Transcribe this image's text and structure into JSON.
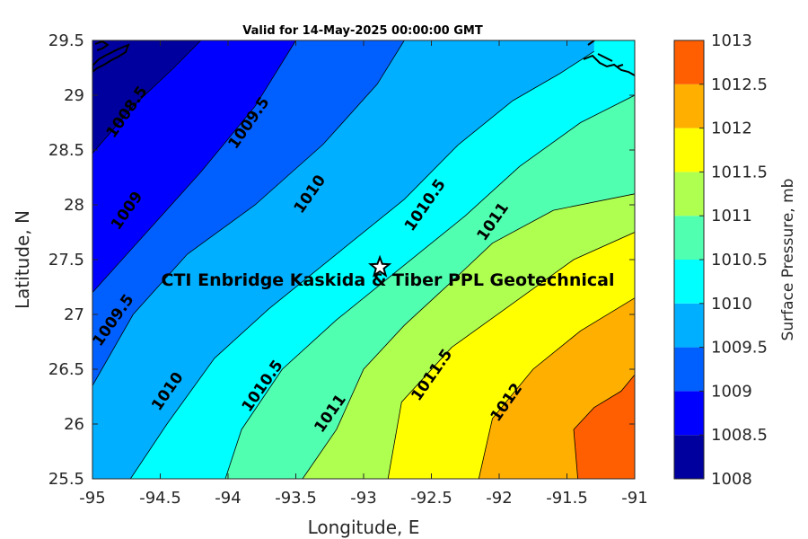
{
  "title": "Valid for 14-May-2025 00:00:00 GMT",
  "site_label": "CTI Enbridge  Kaskida & Tiber PPL Geotechnical",
  "site_marker": {
    "icon": "star-icon",
    "lon": -92.88,
    "lat": 27.43
  },
  "x_axis": {
    "label": "Longitude, E",
    "range": [
      -95,
      -91
    ],
    "ticks": [
      -95,
      -94.5,
      -94,
      -93.5,
      -93,
      -92.5,
      -92,
      -91.5,
      -91
    ],
    "tick_labels": [
      "-95",
      "-94.5",
      "-94",
      "-93.5",
      "-93",
      "-92.5",
      "-92",
      "-91.5",
      "-91"
    ]
  },
  "y_axis": {
    "label": "Latitude, N",
    "range": [
      25.5,
      29.5
    ],
    "ticks": [
      25.5,
      26,
      26.5,
      27,
      27.5,
      28,
      28.5,
      29,
      29.5
    ],
    "tick_labels": [
      "25.5",
      "26",
      "26.5",
      "27",
      "27.5",
      "28",
      "28.5",
      "29",
      "29.5"
    ]
  },
  "colorbar": {
    "label": "Surface Pressure, mb",
    "levels": [
      1008,
      1008.5,
      1009,
      1009.5,
      1010,
      1010.5,
      1011,
      1011.5,
      1012,
      1012.5,
      1013
    ],
    "tick_labels": [
      "1008",
      "1008.5",
      "1009",
      "1009.5",
      "1010",
      "1010.5",
      "1011",
      "1011.5",
      "1012",
      "1012.5",
      "1013"
    ],
    "colors": [
      "#00009f",
      "#0000ff",
      "#005fff",
      "#00afff",
      "#00ffff",
      "#50ffaf",
      "#afff50",
      "#ffff00",
      "#ffaf00",
      "#ff5f00",
      "#ff0000"
    ]
  },
  "chart_data": {
    "type": "filled-contour",
    "variable": "Surface Pressure, mb",
    "levels": [
      1008,
      1008.5,
      1009,
      1009.5,
      1010,
      1010.5,
      1011,
      1011.5,
      1012,
      1012.5,
      1013
    ],
    "contour_lines": [
      {
        "level": 1008.5,
        "points": [
          [
            -95,
            28.47
          ],
          [
            -94.7,
            28.9
          ],
          [
            -94.4,
            29.25
          ],
          [
            -94.2,
            29.5
          ]
        ]
      },
      {
        "level": 1009,
        "points": [
          [
            -95,
            27.2
          ],
          [
            -94.6,
            27.75
          ],
          [
            -94.2,
            28.3
          ],
          [
            -93.8,
            28.9
          ],
          [
            -93.5,
            29.5
          ]
        ]
      },
      {
        "level": 1009.5,
        "points": [
          [
            -95,
            26.35
          ],
          [
            -94.7,
            27.0
          ],
          [
            -94.3,
            27.55
          ],
          [
            -93.8,
            28.0
          ],
          [
            -93.3,
            28.55
          ],
          [
            -92.9,
            29.1
          ],
          [
            -92.7,
            29.5
          ]
        ]
      },
      {
        "level": 1010,
        "points": [
          [
            -94.72,
            25.5
          ],
          [
            -94.45,
            26.0
          ],
          [
            -94.1,
            26.6
          ],
          [
            -93.7,
            27.05
          ],
          [
            -93.2,
            27.55
          ],
          [
            -92.7,
            28.05
          ],
          [
            -92.3,
            28.55
          ],
          [
            -91.9,
            28.95
          ],
          [
            -91.55,
            29.2
          ],
          [
            -91.3,
            29.4
          ]
        ]
      },
      {
        "level": 1010.5,
        "points": [
          [
            -94.02,
            25.5
          ],
          [
            -93.9,
            25.95
          ],
          [
            -93.6,
            26.5
          ],
          [
            -93.2,
            26.95
          ],
          [
            -92.75,
            27.4
          ],
          [
            -92.25,
            27.9
          ],
          [
            -91.85,
            28.35
          ],
          [
            -91.4,
            28.75
          ],
          [
            -91.0,
            29.0
          ]
        ]
      },
      {
        "level": 1011,
        "points": [
          [
            -93.45,
            25.5
          ],
          [
            -93.2,
            25.95
          ],
          [
            -93.0,
            26.5
          ],
          [
            -92.7,
            26.9
          ],
          [
            -92.35,
            27.3
          ],
          [
            -92.05,
            27.65
          ],
          [
            -91.6,
            27.95
          ],
          [
            -91.0,
            28.1
          ]
        ]
      },
      {
        "level": 1011.5,
        "points": [
          [
            -92.82,
            25.5
          ],
          [
            -92.72,
            26.2
          ],
          [
            -92.35,
            26.7
          ],
          [
            -91.9,
            27.1
          ],
          [
            -91.45,
            27.5
          ],
          [
            -91.0,
            27.75
          ]
        ]
      },
      {
        "level": 1012,
        "points": [
          [
            -92.15,
            25.5
          ],
          [
            -92.05,
            26.05
          ],
          [
            -91.75,
            26.5
          ],
          [
            -91.4,
            26.85
          ],
          [
            -91.0,
            27.15
          ]
        ]
      },
      {
        "level": 1012.5,
        "points": [
          [
            -91.42,
            25.5
          ],
          [
            -91.45,
            25.95
          ],
          [
            -91.3,
            26.15
          ],
          [
            -91.1,
            26.3
          ],
          [
            -91.0,
            26.45
          ]
        ]
      }
    ],
    "contour_labels": [
      {
        "text": "1008.5",
        "lon": -94.75,
        "lat": 28.85
      },
      {
        "text": "1009",
        "lon": -94.75,
        "lat": 27.95
      },
      {
        "text": "1009.5",
        "lon": -93.85,
        "lat": 28.75
      },
      {
        "text": "1009.5",
        "lon": -94.85,
        "lat": 26.95
      },
      {
        "text": "1010",
        "lon": -93.4,
        "lat": 28.1
      },
      {
        "text": "1010",
        "lon": -94.45,
        "lat": 26.3
      },
      {
        "text": "1010.5",
        "lon": -92.55,
        "lat": 28.0
      },
      {
        "text": "1010.5",
        "lon": -93.75,
        "lat": 26.35
      },
      {
        "text": "1011",
        "lon": -92.05,
        "lat": 27.85
      },
      {
        "text": "1011",
        "lon": -93.25,
        "lat": 26.1
      },
      {
        "text": "1011.5",
        "lon": -92.5,
        "lat": 26.45
      },
      {
        "text": "1012",
        "lon": -91.95,
        "lat": 26.2
      }
    ]
  }
}
